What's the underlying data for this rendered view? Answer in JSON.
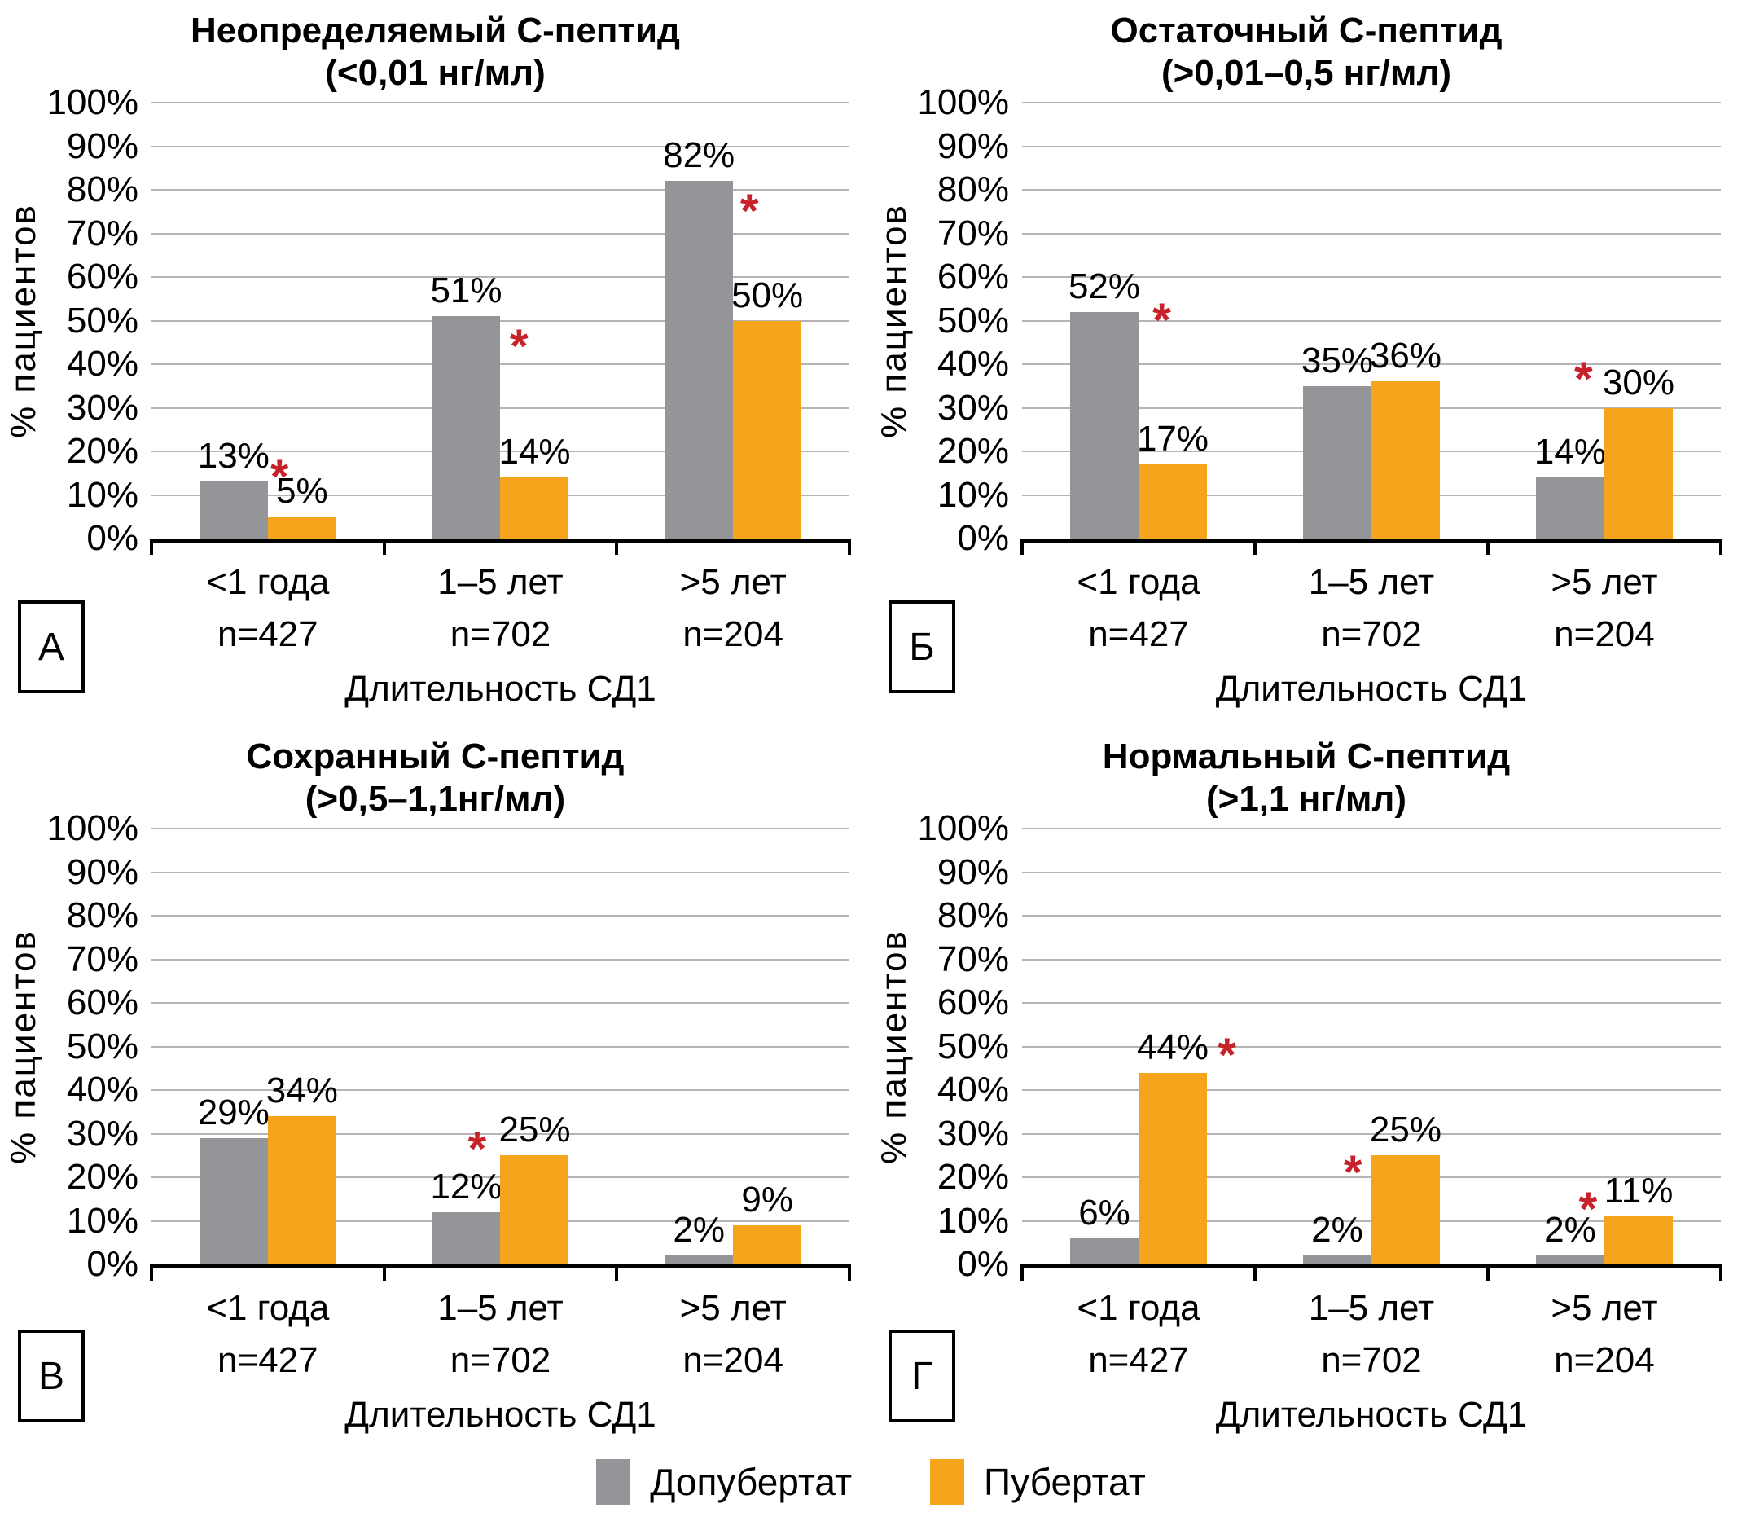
{
  "figure": {
    "y_tick_labels": [
      "0%",
      "10%",
      "20%",
      "30%",
      "40%",
      "50%",
      "60%",
      "70%",
      "80%",
      "90%",
      "100%"
    ],
    "significance_symbol": "*",
    "significance_color": "#C5222A",
    "gridline_color": "#B5B5B5",
    "axis_color": "#000000",
    "legend": [
      {
        "name": "Допубертат",
        "color": "#939598"
      },
      {
        "name": "Пубертат",
        "color": "#F7A41D"
      }
    ]
  },
  "chart_data": [
    {
      "type": "bar",
      "panel_letter": "А",
      "title_line1": "Неопределяемый С-пептид",
      "title_line2": "(<0,01 нг/мл)",
      "categories": [
        "<1 года",
        "1–5 лет",
        ">5 лет"
      ],
      "category_n": [
        "n=427",
        "n=702",
        "n=204"
      ],
      "xlabel": "Длительность СД1",
      "ylabel": "% пациентов",
      "ylim": [
        0,
        100
      ],
      "ytick_step": 10,
      "grid": true,
      "series": [
        {
          "name": "Допубертат",
          "color": "#939598",
          "values": [
            13,
            51,
            82
          ],
          "data_labels": [
            "13%",
            "51%",
            "82%"
          ]
        },
        {
          "name": "Пубертат",
          "color": "#F7A41D",
          "values": [
            5,
            14,
            50
          ],
          "data_labels": [
            "5%",
            "14%",
            "50%"
          ]
        }
      ],
      "significance_marks": [
        {
          "group": 0,
          "x_frac": 0.55,
          "y_pct": 16
        },
        {
          "group": 1,
          "x_frac": 0.58,
          "y_pct": 46
        },
        {
          "group": 2,
          "x_frac": 0.57,
          "y_pct": 77
        }
      ]
    },
    {
      "type": "bar",
      "panel_letter": "Б",
      "title_line1": "Остаточный С-пептид",
      "title_line2": "(>0,01–0,5 нг/мл)",
      "categories": [
        "<1 года",
        "1–5 лет",
        ">5 лет"
      ],
      "category_n": [
        "n=427",
        "n=702",
        "n=204"
      ],
      "xlabel": "Длительность СД1",
      "ylabel": "% пациентов",
      "ylim": [
        0,
        100
      ],
      "ytick_step": 10,
      "grid": true,
      "series": [
        {
          "name": "Допубертат",
          "color": "#939598",
          "values": [
            52,
            35,
            14
          ],
          "data_labels": [
            "52%",
            "35%",
            "14%"
          ]
        },
        {
          "name": "Пубертат",
          "color": "#F7A41D",
          "values": [
            17,
            36,
            30
          ],
          "data_labels": [
            "17%",
            "36%",
            "30%"
          ]
        }
      ],
      "significance_marks": [
        {
          "group": 0,
          "x_frac": 0.6,
          "y_pct": 52
        },
        {
          "group": 2,
          "x_frac": 0.41,
          "y_pct": 38.5
        }
      ]
    },
    {
      "type": "bar",
      "panel_letter": "В",
      "title_line1": "Сохранный С-пептид",
      "title_line2": "(>0,5–1,1нг/мл)",
      "categories": [
        "<1 года",
        "1–5 лет",
        ">5 лет"
      ],
      "category_n": [
        "n=427",
        "n=702",
        "n=204"
      ],
      "xlabel": "Длительность СД1",
      "ylabel": "% пациентов",
      "ylim": [
        0,
        100
      ],
      "ytick_step": 10,
      "grid": true,
      "series": [
        {
          "name": "Допубертат",
          "color": "#939598",
          "values": [
            29,
            12,
            2
          ],
          "data_labels": [
            "29%",
            "12%",
            "2%"
          ]
        },
        {
          "name": "Пубертат",
          "color": "#F7A41D",
          "values": [
            34,
            25,
            9
          ],
          "data_labels": [
            "34%",
            "25%",
            "9%"
          ]
        }
      ],
      "significance_marks": [
        {
          "group": 1,
          "x_frac": 0.4,
          "y_pct": 28.5
        }
      ]
    },
    {
      "type": "bar",
      "panel_letter": "Г",
      "title_line1": "Нормальный С-пептид",
      "title_line2": "(>1,1 нг/мл)",
      "categories": [
        "<1 года",
        "1–5 лет",
        ">5 лет"
      ],
      "category_n": [
        "n=427",
        "n=702",
        "n=204"
      ],
      "xlabel": "Длительность СД1",
      "ylabel": "% пациентов",
      "ylim": [
        0,
        100
      ],
      "ytick_step": 10,
      "grid": true,
      "series": [
        {
          "name": "Допубертат",
          "color": "#939598",
          "values": [
            6,
            2,
            2
          ],
          "data_labels": [
            "6%",
            "2%",
            "2%"
          ]
        },
        {
          "name": "Пубертат",
          "color": "#F7A41D",
          "values": [
            44,
            25,
            11
          ],
          "data_labels": [
            "44%",
            "25%",
            "11%"
          ]
        }
      ],
      "significance_marks": [
        {
          "group": 0,
          "x_frac": 0.88,
          "y_pct": 50
        },
        {
          "group": 1,
          "x_frac": 0.42,
          "y_pct": 23
        },
        {
          "group": 2,
          "x_frac": 0.43,
          "y_pct": 14.5
        }
      ]
    }
  ]
}
